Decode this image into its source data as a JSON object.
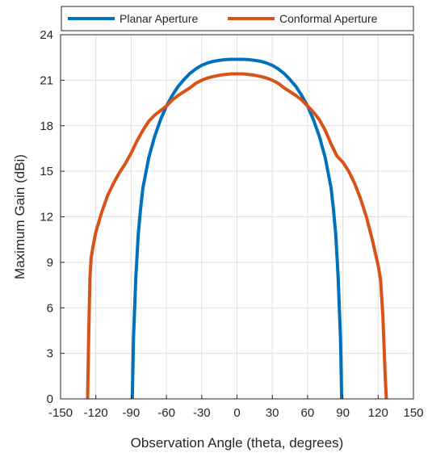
{
  "chart_data": {
    "type": "line",
    "title": "",
    "xlabel": "Observation Angle (theta, degrees)",
    "ylabel": "Maximum Gain (dBi)",
    "xlim": [
      -150,
      150
    ],
    "ylim": [
      0,
      24
    ],
    "xticks": [
      -150,
      -120,
      -90,
      -60,
      -30,
      0,
      30,
      60,
      90,
      120,
      150
    ],
    "yticks": [
      0,
      3,
      6,
      9,
      12,
      15,
      18,
      21,
      24
    ],
    "grid": true,
    "legend_position": "top",
    "series": [
      {
        "name": "Planar Aperture",
        "color": "#0072BD",
        "x": [
          -89,
          -88,
          -86,
          -84,
          -82,
          -80,
          -75,
          -70,
          -65,
          -60,
          -55,
          -50,
          -45,
          -40,
          -35,
          -30,
          -25,
          -20,
          -15,
          -10,
          -5,
          0,
          5,
          10,
          15,
          20,
          25,
          30,
          35,
          40,
          45,
          50,
          55,
          60,
          65,
          70,
          75,
          80,
          82,
          84,
          86,
          88,
          89
        ],
        "y": [
          0,
          4,
          8,
          10.8,
          12.5,
          13.9,
          15.9,
          17.3,
          18.4,
          19.3,
          20.0,
          20.6,
          21.05,
          21.45,
          21.75,
          21.98,
          22.14,
          22.25,
          22.31,
          22.36,
          22.38,
          22.38,
          22.38,
          22.36,
          22.31,
          22.25,
          22.14,
          21.98,
          21.75,
          21.45,
          21.05,
          20.6,
          20.0,
          19.3,
          18.4,
          17.3,
          15.9,
          13.9,
          12.5,
          10.8,
          8,
          4,
          0
        ]
      },
      {
        "name": "Conformal Aperture",
        "color": "#D95319",
        "x": [
          -127,
          -126,
          -125,
          -124,
          -122,
          -120,
          -115,
          -110,
          -105,
          -100,
          -95,
          -90,
          -85,
          -80,
          -75,
          -70,
          -65,
          -60,
          -55,
          -50,
          -45,
          -40,
          -35,
          -30,
          -25,
          -20,
          -15,
          -10,
          -5,
          0,
          5,
          10,
          15,
          20,
          25,
          30,
          35,
          40,
          45,
          50,
          55,
          60,
          65,
          70,
          75,
          80,
          85,
          90,
          95,
          100,
          105,
          110,
          115,
          120,
          122,
          124,
          125,
          126,
          127
        ],
        "y": [
          0,
          4.5,
          8,
          9.3,
          10.2,
          11.0,
          12.3,
          13.4,
          14.2,
          14.9,
          15.5,
          16.2,
          17.0,
          17.7,
          18.3,
          18.7,
          19.0,
          19.3,
          19.7,
          20.0,
          20.25,
          20.5,
          20.8,
          21.0,
          21.15,
          21.25,
          21.33,
          21.38,
          21.42,
          21.42,
          21.42,
          21.38,
          21.33,
          21.25,
          21.15,
          21.0,
          20.8,
          20.5,
          20.25,
          20.0,
          19.7,
          19.3,
          18.9,
          18.4,
          17.7,
          16.8,
          16.0,
          15.6,
          15.0,
          14.2,
          13.2,
          12.0,
          10.5,
          8.8,
          7.9,
          5.5,
          3.5,
          1.5,
          0
        ]
      }
    ]
  }
}
